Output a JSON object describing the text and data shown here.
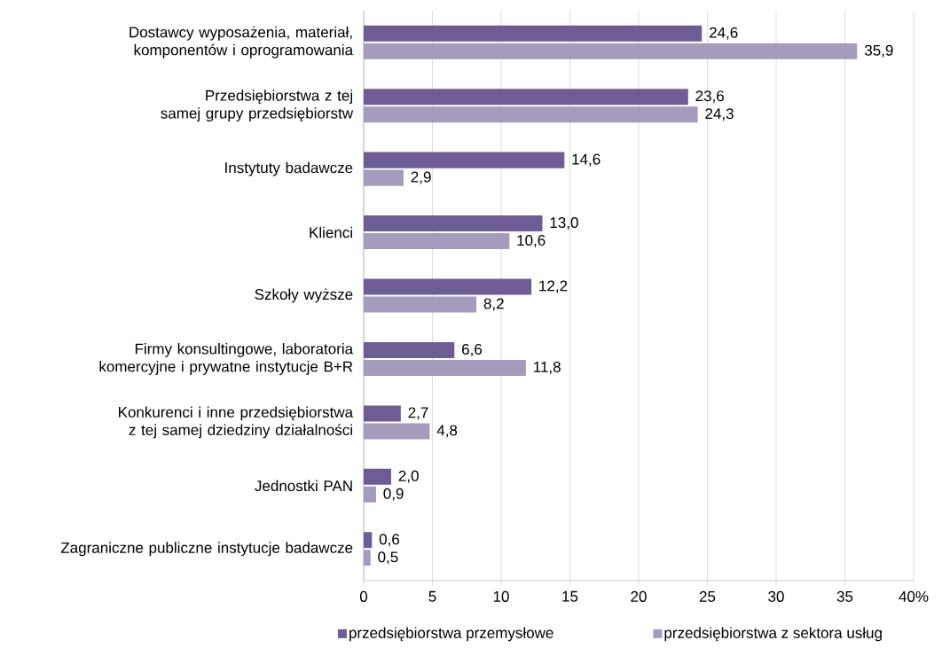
{
  "chart_data": {
    "type": "bar",
    "orientation": "horizontal",
    "categories": [
      "Dostawcy wyposażenia, materiał, komponentów i oprogramowania",
      "Przedsiębiorstwa z tej samej grupy przedsiębiorstw",
      "Instytuty badawcze",
      "Klienci",
      "Szkoły wyższe",
      "Firmy konsultingowe, laboratoria komercyjne i prywatne instytucje B+R",
      "Konkurenci i inne przedsiębiorstwa z tej samej dziedziny działalności",
      "Jednostki PAN",
      "Zagraniczne publiczne instytucje badawcze"
    ],
    "series": [
      {
        "name": "przedsiębiorstwa przemysłowe",
        "color": "#6e5c94",
        "values": [
          24.6,
          23.6,
          14.6,
          13.0,
          12.2,
          6.6,
          2.7,
          2.0,
          0.6
        ],
        "value_labels": [
          "24,6",
          "23,6",
          "14,6",
          "13,0",
          "12,2",
          "6,6",
          "2,7",
          "2,0",
          "0,6"
        ]
      },
      {
        "name": "przedsiębiorstwa z sektora usług",
        "color": "#a69abd",
        "values": [
          35.9,
          24.3,
          2.9,
          10.6,
          8.2,
          11.8,
          4.8,
          0.9,
          0.5
        ],
        "value_labels": [
          "35,9",
          "24,3",
          "2,9",
          "10,6",
          "8,2",
          "11,8",
          "4,8",
          "0,9",
          "0,5"
        ]
      }
    ],
    "xlim": [
      0,
      40
    ],
    "xticks": [
      0,
      5,
      10,
      15,
      20,
      25,
      30,
      35,
      {
        "value": 40,
        "label": "40%"
      }
    ],
    "grid": "x",
    "legend": "bottom"
  }
}
